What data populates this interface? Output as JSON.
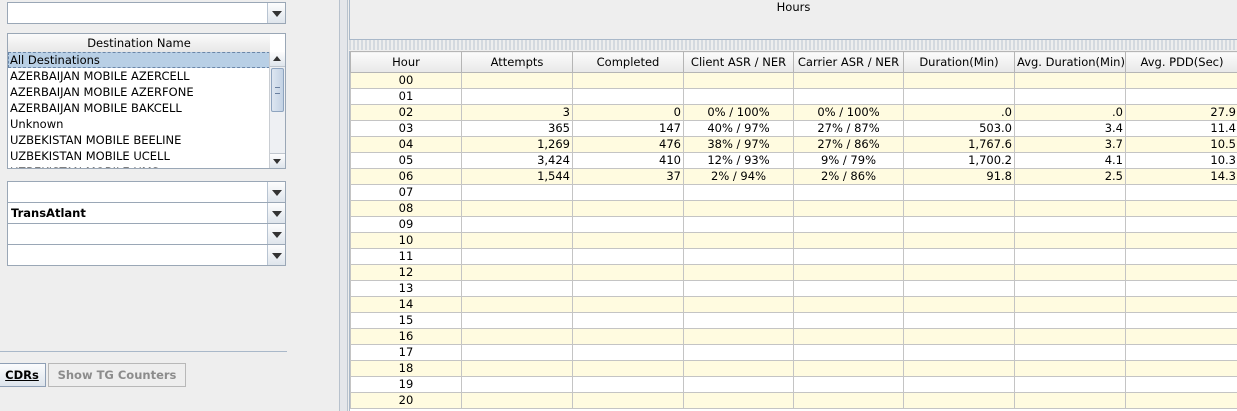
{
  "combos": [
    {
      "name": "top-combo",
      "value": ""
    },
    {
      "name": "combo-1",
      "value": ""
    },
    {
      "name": "carrier-combo",
      "value": "TransAtlant"
    },
    {
      "name": "combo-3",
      "value": ""
    },
    {
      "name": "combo-4",
      "value": ""
    }
  ],
  "destination_list": {
    "header": "Destination Name",
    "items": [
      "All Destinations",
      "AZERBAIJAN MOBILE AZERCELL",
      "AZERBAIJAN MOBILE AZERFONE",
      "AZERBAIJAN MOBILE BAKCELL",
      "Unknown",
      "UZBEKISTAN MOBILE BEELINE",
      "UZBEKISTAN MOBILE UCELL",
      "UZBEKISTAN MOBILE UMS"
    ],
    "selected_index": 0
  },
  "buttons": {
    "cdrs": "CDRs",
    "show_tg_counters": "Show TG Counters"
  },
  "hours_panel": {
    "title": "Hours"
  },
  "table": {
    "columns": [
      "Hour",
      "Attempts",
      "Completed",
      "Client ASR / NER",
      "Carrier ASR / NER",
      "Duration(Min)",
      "Avg. Duration(Min)",
      "Avg. PDD(Sec)"
    ],
    "rows": [
      [
        "00",
        "",
        "",
        "",
        "",
        "",
        "",
        ""
      ],
      [
        "01",
        "",
        "",
        "",
        "",
        "",
        "",
        ""
      ],
      [
        "02",
        "3",
        "0",
        "0%  /  100%",
        "0%  /  100%",
        ".0",
        ".0",
        "27.9"
      ],
      [
        "03",
        "365",
        "147",
        "40%  /  97%",
        "27%  /  87%",
        "503.0",
        "3.4",
        "11.4"
      ],
      [
        "04",
        "1,269",
        "476",
        "38%  /  97%",
        "27%  /  86%",
        "1,767.6",
        "3.7",
        "10.5"
      ],
      [
        "05",
        "3,424",
        "410",
        "12%  /  93%",
        "9%  /  79%",
        "1,700.2",
        "4.1",
        "10.3"
      ],
      [
        "06",
        "1,544",
        "37",
        "2%  /  94%",
        "2%  /  86%",
        "91.8",
        "2.5",
        "14.3"
      ],
      [
        "07",
        "",
        "",
        "",
        "",
        "",
        "",
        ""
      ],
      [
        "08",
        "",
        "",
        "",
        "",
        "",
        "",
        ""
      ],
      [
        "09",
        "",
        "",
        "",
        "",
        "",
        "",
        ""
      ],
      [
        "10",
        "",
        "",
        "",
        "",
        "",
        "",
        ""
      ],
      [
        "11",
        "",
        "",
        "",
        "",
        "",
        "",
        ""
      ],
      [
        "12",
        "",
        "",
        "",
        "",
        "",
        "",
        ""
      ],
      [
        "13",
        "",
        "",
        "",
        "",
        "",
        "",
        ""
      ],
      [
        "14",
        "",
        "",
        "",
        "",
        "",
        "",
        ""
      ],
      [
        "15",
        "",
        "",
        "",
        "",
        "",
        "",
        ""
      ],
      [
        "16",
        "",
        "",
        "",
        "",
        "",
        "",
        ""
      ],
      [
        "17",
        "",
        "",
        "",
        "",
        "",
        "",
        ""
      ],
      [
        "18",
        "",
        "",
        "",
        "",
        "",
        "",
        ""
      ],
      [
        "19",
        "",
        "",
        "",
        "",
        "",
        "",
        ""
      ],
      [
        "20",
        "",
        "",
        "",
        "",
        "",
        "",
        ""
      ]
    ]
  }
}
